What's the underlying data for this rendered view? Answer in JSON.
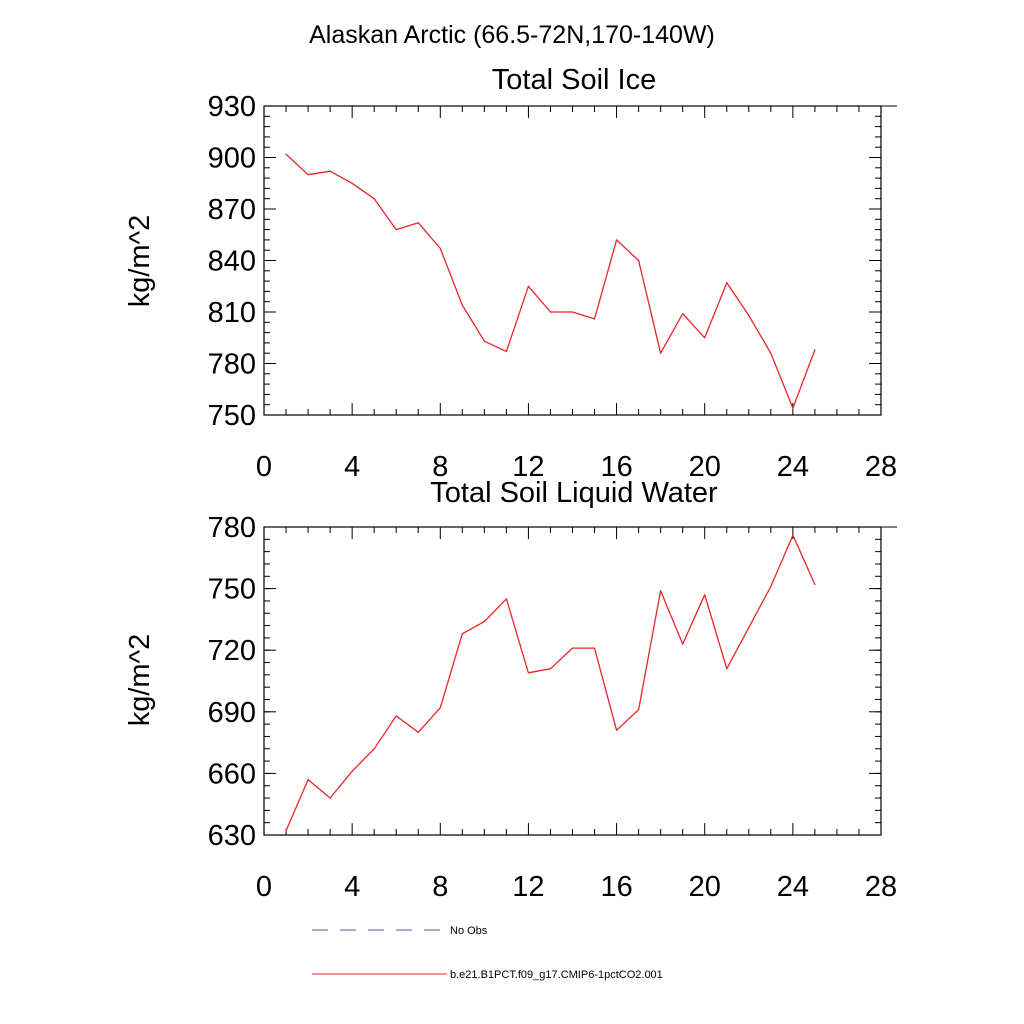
{
  "figure": {
    "title": "Alaskan Arctic (66.5-72N,170-140W)"
  },
  "chart_data": [
    {
      "type": "line",
      "title": "Total Soil Ice",
      "xlabel": "",
      "ylabel": "kg/m^2",
      "xlim": [
        0,
        28
      ],
      "ylim": [
        750,
        930
      ],
      "xticks": [
        0,
        4,
        8,
        12,
        16,
        20,
        24,
        28
      ],
      "yticks": [
        750,
        780,
        810,
        840,
        870,
        900,
        930
      ],
      "grid": false,
      "series": [
        {
          "name": "b.e21.B1PCT.f09_g17.CMIP6-1pctCO2.001",
          "color": "#e8262a",
          "x": [
            1,
            2,
            3,
            4,
            5,
            6,
            7,
            8,
            9,
            10,
            11,
            12,
            13,
            14,
            15,
            16,
            17,
            18,
            19,
            20,
            21,
            22,
            23,
            24,
            25
          ],
          "y": [
            902,
            890,
            892,
            885,
            876,
            858,
            862,
            847,
            814,
            793,
            787,
            825,
            810,
            810,
            806,
            852,
            840,
            786,
            809,
            795,
            827,
            808,
            786,
            754,
            788
          ]
        }
      ]
    },
    {
      "type": "line",
      "title": "Total Soil Liquid Water",
      "xlabel": "",
      "ylabel": "kg/m^2",
      "xlim": [
        0,
        28
      ],
      "ylim": [
        630,
        780
      ],
      "xticks": [
        0,
        4,
        8,
        12,
        16,
        20,
        24,
        28
      ],
      "yticks": [
        630,
        660,
        690,
        720,
        750,
        780
      ],
      "grid": false,
      "series": [
        {
          "name": "b.e21.B1PCT.f09_g17.CMIP6-1pctCO2.001",
          "color": "#e8262a",
          "x": [
            1,
            2,
            3,
            4,
            5,
            6,
            7,
            8,
            9,
            10,
            11,
            12,
            13,
            14,
            15,
            16,
            17,
            18,
            19,
            20,
            21,
            22,
            23,
            24,
            25
          ],
          "y": [
            632,
            657,
            648,
            661,
            672,
            688,
            680,
            692,
            728,
            734,
            745,
            709,
            711,
            721,
            721,
            681,
            691,
            749,
            723,
            747,
            711,
            731,
            751,
            776,
            752
          ]
        }
      ]
    }
  ],
  "legend": {
    "placement": "bottom-center",
    "entries": [
      {
        "label": "No Obs",
        "color": "#4a5aa6",
        "style": "dashed"
      },
      {
        "label": "b.e21.B1PCT.f09_g17.CMIP6-1pctCO2.001",
        "color": "#e8262a",
        "style": "solid"
      }
    ]
  }
}
